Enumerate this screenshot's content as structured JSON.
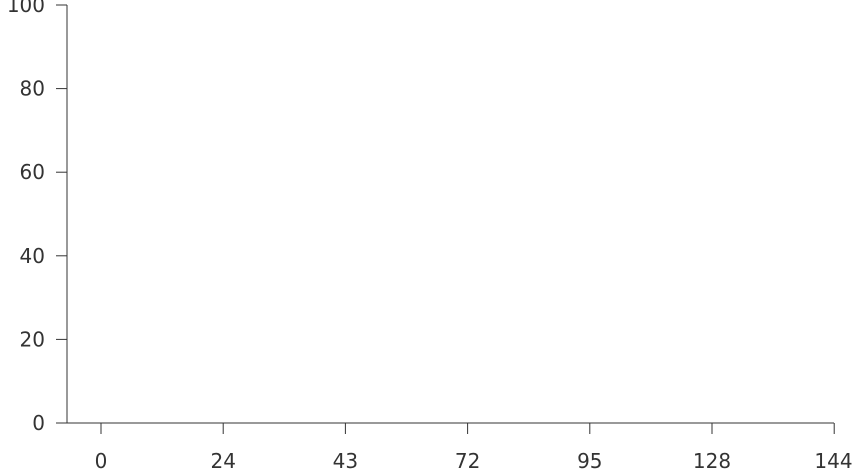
{
  "chart_data": {
    "type": "line",
    "title": "",
    "xlabel": "",
    "ylabel": "",
    "x_tick_labels": [
      "0",
      "24",
      "43",
      "72",
      "95",
      "128",
      "144"
    ],
    "y_tick_labels": [
      "0",
      "20",
      "40",
      "60",
      "80",
      "100"
    ],
    "ylim": [
      0,
      100
    ],
    "series": [],
    "grid": false,
    "legend": "none"
  }
}
